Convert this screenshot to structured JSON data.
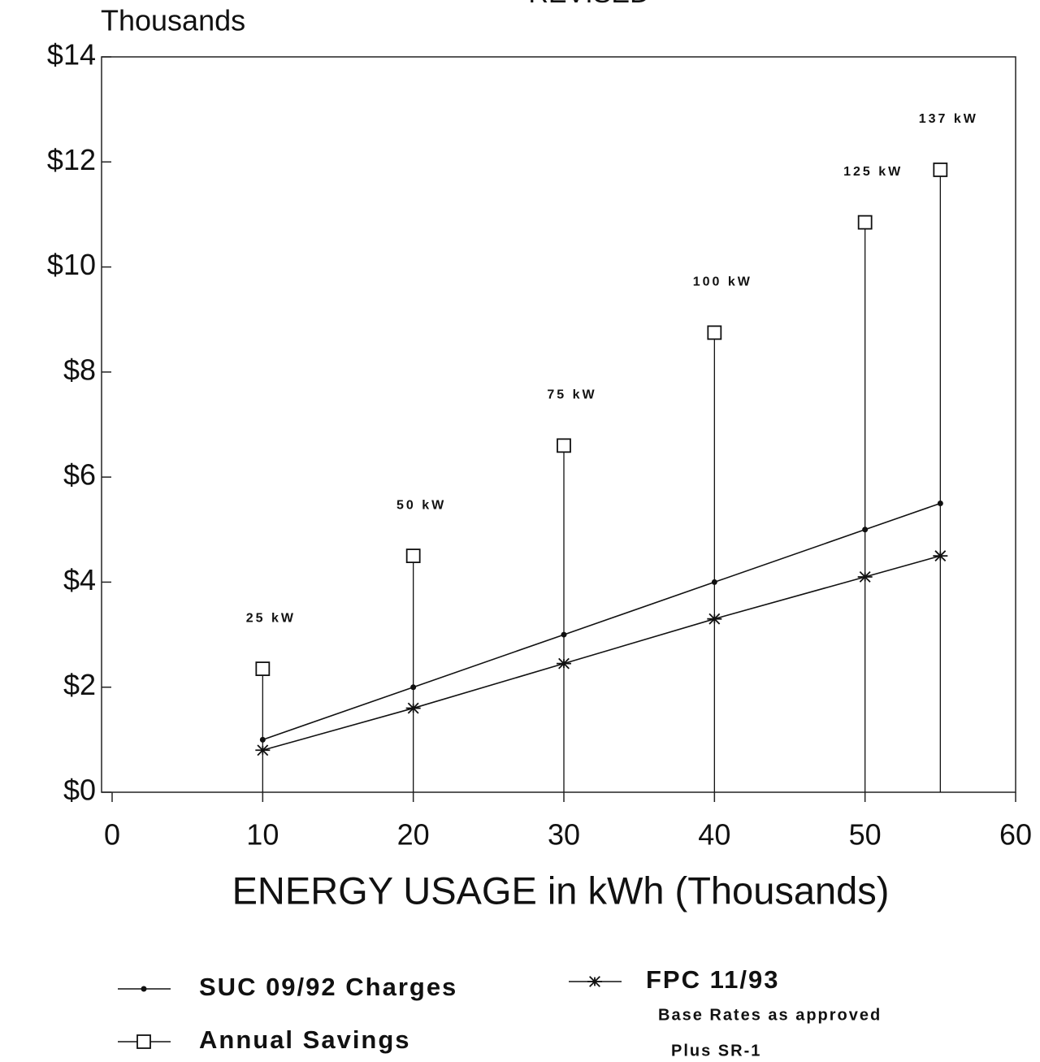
{
  "chart_data": {
    "type": "line",
    "title": "REVISED",
    "y_label": "Thousands",
    "x_label": "ENERGY USAGE in kWh (Thousands)",
    "x": [
      10,
      20,
      30,
      40,
      50,
      55
    ],
    "series": [
      {
        "name": "SUC 09/92 Charges",
        "color": "#111111",
        "marker": "dot",
        "values": [
          1.0,
          2.0,
          3.0,
          4.0,
          5.0,
          5.5
        ]
      },
      {
        "name": "Annual Savings",
        "color": "#111111",
        "marker": "square",
        "drop_lines": true,
        "values": [
          2.35,
          4.5,
          6.6,
          8.75,
          10.85,
          11.85
        ]
      },
      {
        "name": "FPC 11/93",
        "color": "#111111",
        "marker": "asterisk",
        "values": [
          0.8,
          1.6,
          2.45,
          3.3,
          4.1,
          4.5
        ]
      }
    ],
    "point_labels": [
      "25 kW",
      "50 kW",
      "75 kW",
      "100 kW",
      "125 kW",
      "137 kW"
    ],
    "notes": [
      "Base Rates as approved",
      "Plus SR-1"
    ],
    "xlim": [
      0,
      60
    ],
    "xticks": [
      0,
      10,
      20,
      30,
      40,
      50,
      60
    ],
    "ylim": [
      0,
      14
    ],
    "yticks": [
      {
        "value": 0,
        "label": "$0"
      },
      {
        "value": 2,
        "label": "$2"
      },
      {
        "value": 4,
        "label": "$4"
      },
      {
        "value": 6,
        "label": "$6"
      },
      {
        "value": 8,
        "label": "$8"
      },
      {
        "value": 10,
        "label": "$10"
      },
      {
        "value": 12,
        "label": "$12"
      },
      {
        "value": 14,
        "label": "$14"
      }
    ],
    "grid": false
  }
}
